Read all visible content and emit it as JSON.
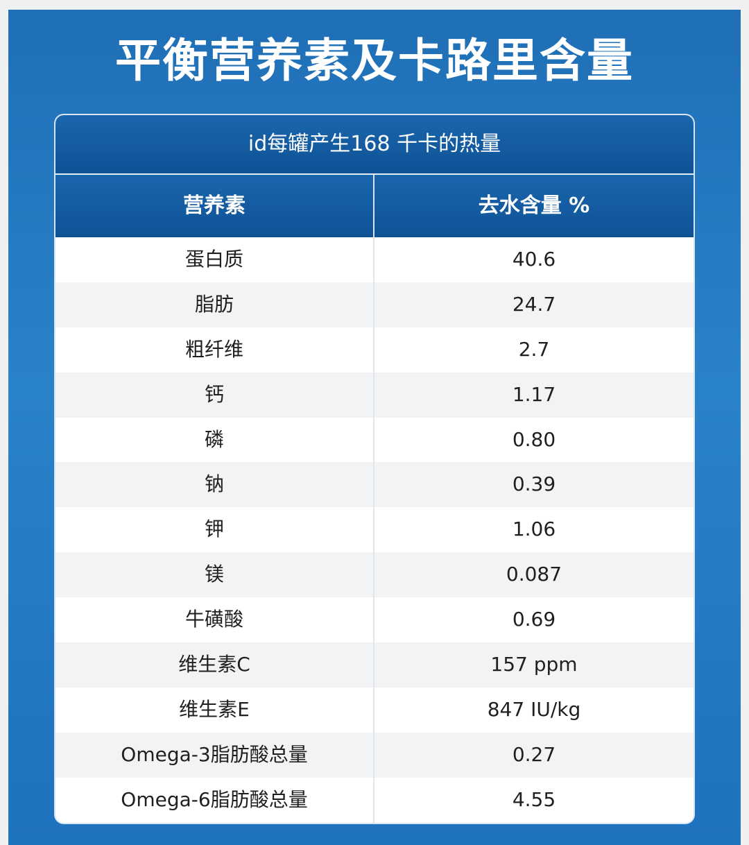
{
  "title": "平衡营养素及卡路里含量",
  "table": {
    "caption": "id每罐产生168 千卡的热量",
    "headers": [
      "营养素",
      "去水含量 %"
    ],
    "rows": [
      [
        "蛋白质",
        "40.6"
      ],
      [
        "脂肪",
        "24.7"
      ],
      [
        "粗纤维",
        "2.7"
      ],
      [
        "钙",
        "1.17"
      ],
      [
        "磷",
        "0.80"
      ],
      [
        "钠",
        "0.39"
      ],
      [
        "钾",
        "1.06"
      ],
      [
        "镁",
        "0.087"
      ],
      [
        "牛磺酸",
        "0.69"
      ],
      [
        "维生素C",
        "157 ppm"
      ],
      [
        "维生素E",
        "847 IU/kg"
      ],
      [
        "Omega-3脂肪酸总量",
        "0.27"
      ],
      [
        "Omega-6脂肪酸总量",
        "4.55"
      ]
    ]
  },
  "colors": {
    "panel_blue": "#2a82c9",
    "header_blue": "#1a66ad",
    "stripe_gray": "#f2f3f4"
  }
}
